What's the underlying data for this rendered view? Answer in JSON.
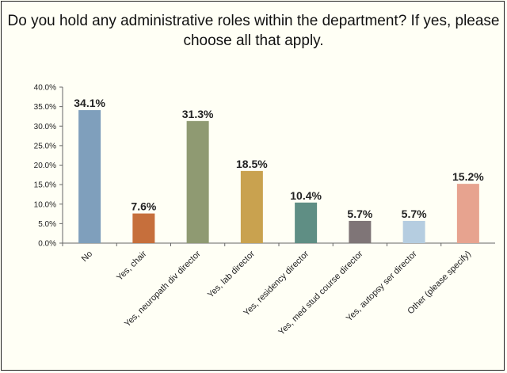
{
  "chart_data": {
    "type": "bar",
    "title": "Do you hold any administrative roles within the department? If yes, please choose all that apply.",
    "xlabel": "",
    "ylabel": "",
    "ylim": [
      0,
      40
    ],
    "ytick_step": 5,
    "ytick_labels": [
      "0.0%",
      "5.0%",
      "10.0%",
      "15.0%",
      "20.0%",
      "25.0%",
      "30.0%",
      "35.0%",
      "40.0%"
    ],
    "grid": false,
    "legend": "none",
    "categories": [
      "No",
      "Yes, chair",
      "Yes, neuropath div director",
      "Yes, lab director",
      "Yes, residency director",
      "Yes, med stud course director",
      "Yes, autopsy ser director",
      "Other (please specify)"
    ],
    "values": [
      34.1,
      7.6,
      31.3,
      18.5,
      10.4,
      5.7,
      5.7,
      15.2
    ],
    "data_labels": [
      "34.1%",
      "7.6%",
      "31.3%",
      "18.5%",
      "10.4%",
      "5.7%",
      "5.7%",
      "15.2%"
    ],
    "colors": [
      "#7f9fbc",
      "#c66f3c",
      "#8f9a72",
      "#c9a24f",
      "#5f8e84",
      "#7f7577",
      "#b5cde0",
      "#e7a38f"
    ]
  }
}
